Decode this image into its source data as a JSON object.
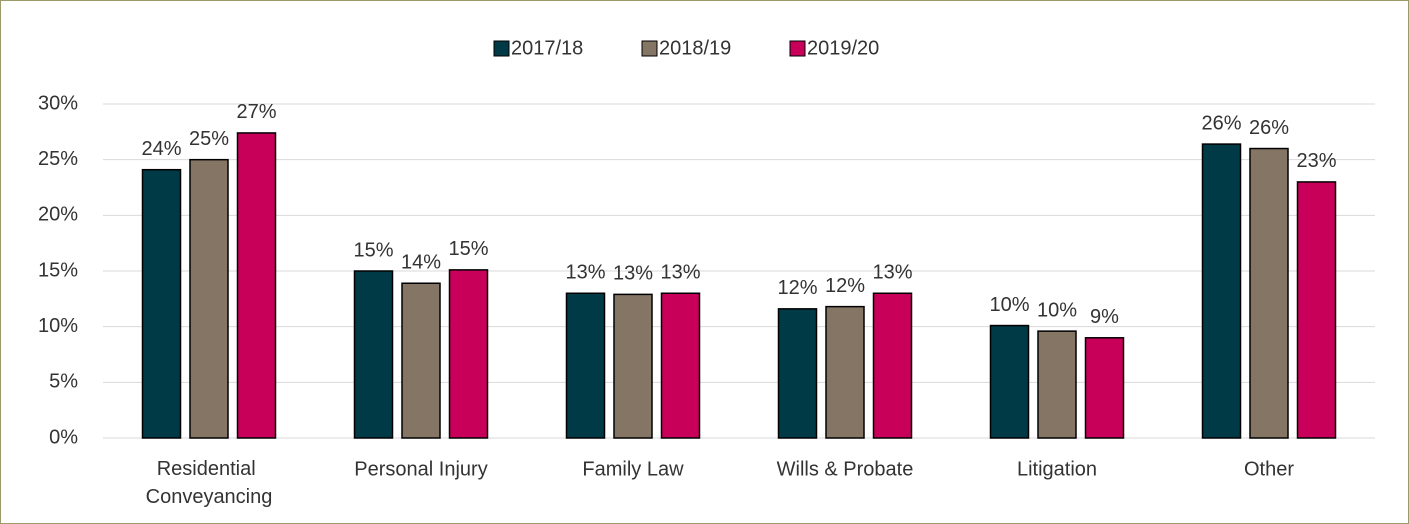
{
  "chart_data": {
    "type": "bar",
    "categories": [
      "Residential Conveyancing",
      "Personal Injury",
      "Family Law",
      "Wills & Probate",
      "Litigation",
      "Other"
    ],
    "series": [
      {
        "name": "2017/18",
        "color": "#003a46",
        "values": [
          24.1,
          15.0,
          13.0,
          11.6,
          10.1,
          26.4
        ],
        "value_labels": [
          "24%",
          "15%",
          "13%",
          "12%",
          "10%",
          "26%"
        ]
      },
      {
        "name": "2018/19",
        "color": "#857565",
        "values": [
          25.0,
          13.9,
          12.9,
          11.8,
          9.6,
          26.0
        ],
        "value_labels": [
          "25%",
          "14%",
          "13%",
          "12%",
          "10%",
          "26%"
        ]
      },
      {
        "name": "2019/20",
        "color": "#c8005a",
        "values": [
          27.4,
          15.1,
          13.0,
          13.0,
          9.0,
          23.0
        ],
        "value_labels": [
          "27%",
          "15%",
          "13%",
          "13%",
          "9%",
          "23%"
        ]
      }
    ],
    "ylim": [
      0,
      30
    ],
    "yticks": [
      {
        "value": 0,
        "label": "0%"
      },
      {
        "value": 5,
        "label": "5%"
      },
      {
        "value": 10,
        "label": "10%"
      },
      {
        "value": 15,
        "label": "15%"
      },
      {
        "value": 20,
        "label": "20%"
      },
      {
        "value": 25,
        "label": "25%"
      },
      {
        "value": 30,
        "label": "30%"
      }
    ],
    "grid": true,
    "legend": "top"
  }
}
